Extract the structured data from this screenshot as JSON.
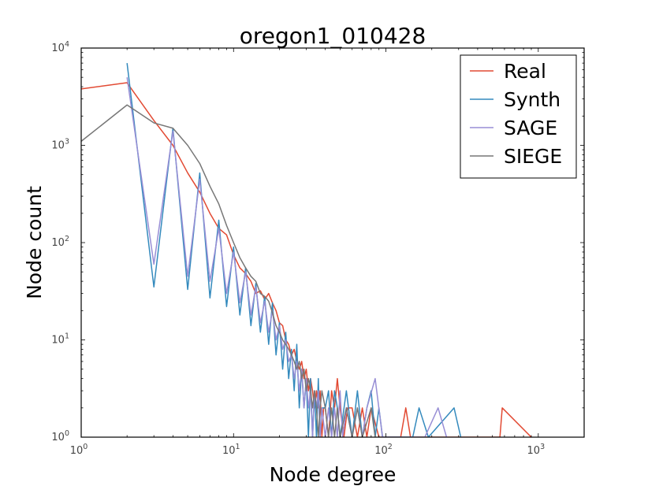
{
  "chart_data": {
    "type": "line",
    "title": "oregon1_010428",
    "xlabel": "Node degree",
    "ylabel": "Node count",
    "xscale": "log",
    "yscale": "log",
    "xlim": [
      1,
      2000
    ],
    "ylim": [
      1,
      10000
    ],
    "x_ticks": [
      {
        "value": 1,
        "base": "10",
        "exp": "0"
      },
      {
        "value": 10,
        "base": "10",
        "exp": "1"
      },
      {
        "value": 100,
        "base": "10",
        "exp": "2"
      },
      {
        "value": 1000,
        "base": "10",
        "exp": "3"
      }
    ],
    "y_ticks": [
      {
        "value": 1,
        "base": "10",
        "exp": "0"
      },
      {
        "value": 10,
        "base": "10",
        "exp": "1"
      },
      {
        "value": 100,
        "base": "10",
        "exp": "2"
      },
      {
        "value": 1000,
        "base": "10",
        "exp": "3"
      },
      {
        "value": 10000,
        "base": "10",
        "exp": "4"
      }
    ],
    "grid": false,
    "legend_position": "top-right",
    "series": [
      {
        "name": "Real",
        "color": "#e24a33",
        "points": [
          [
            1,
            3800
          ],
          [
            2,
            4400
          ],
          [
            3,
            1800
          ],
          [
            4,
            1000
          ],
          [
            5,
            520
          ],
          [
            6,
            330
          ],
          [
            7,
            200
          ],
          [
            8,
            140
          ],
          [
            9,
            120
          ],
          [
            10,
            75
          ],
          [
            11,
            55
          ],
          [
            12,
            48
          ],
          [
            13,
            40
          ],
          [
            14,
            30
          ],
          [
            15,
            32
          ],
          [
            16,
            26
          ],
          [
            17,
            30
          ],
          [
            18,
            24
          ],
          [
            19,
            20
          ],
          [
            20,
            15
          ],
          [
            21,
            14
          ],
          [
            22,
            10
          ],
          [
            23,
            9
          ],
          [
            24,
            7
          ],
          [
            25,
            8
          ],
          [
            26,
            6
          ],
          [
            27,
            5
          ],
          [
            28,
            6
          ],
          [
            29,
            4
          ],
          [
            30,
            5
          ],
          [
            31,
            3
          ],
          [
            32,
            4
          ],
          [
            33,
            3
          ],
          [
            34,
            2
          ],
          [
            35,
            3
          ],
          [
            36,
            2
          ],
          [
            37,
            3
          ],
          [
            38,
            1
          ],
          [
            39,
            2
          ],
          [
            40,
            2
          ],
          [
            42,
            1
          ],
          [
            44,
            3
          ],
          [
            46,
            2
          ],
          [
            48,
            4
          ],
          [
            50,
            2
          ],
          [
            53,
            1
          ],
          [
            56,
            2
          ],
          [
            60,
            2
          ],
          [
            65,
            1
          ],
          [
            70,
            2
          ],
          [
            75,
            1
          ],
          [
            80,
            2
          ],
          [
            90,
            1
          ],
          [
            100,
            1
          ],
          [
            110,
            1
          ],
          [
            125,
            1
          ],
          [
            135,
            2
          ],
          [
            145,
            1
          ],
          [
            560,
            1
          ],
          [
            580,
            2
          ],
          [
            900,
            1
          ]
        ]
      },
      {
        "name": "Synth",
        "color": "#348abd",
        "points": [
          [
            2,
            7000
          ],
          [
            3,
            35
          ],
          [
            4,
            1500
          ],
          [
            5,
            33
          ],
          [
            6,
            520
          ],
          [
            7,
            27
          ],
          [
            8,
            170
          ],
          [
            9,
            22
          ],
          [
            10,
            90
          ],
          [
            11,
            18
          ],
          [
            12,
            55
          ],
          [
            13,
            14
          ],
          [
            14,
            38
          ],
          [
            15,
            12
          ],
          [
            16,
            28
          ],
          [
            17,
            9
          ],
          [
            18,
            24
          ],
          [
            19,
            7
          ],
          [
            20,
            15
          ],
          [
            21,
            5
          ],
          [
            22,
            12
          ],
          [
            23,
            4
          ],
          [
            24,
            8
          ],
          [
            25,
            3
          ],
          [
            26,
            9
          ],
          [
            27,
            2
          ],
          [
            28,
            5
          ],
          [
            29,
            2
          ],
          [
            30,
            4
          ],
          [
            31,
            1
          ],
          [
            32,
            4
          ],
          [
            33,
            1
          ],
          [
            34,
            3
          ],
          [
            35,
            1
          ],
          [
            36,
            4
          ],
          [
            37,
            1
          ],
          [
            38,
            2
          ],
          [
            40,
            2
          ],
          [
            42,
            3
          ],
          [
            44,
            1
          ],
          [
            46,
            3
          ],
          [
            48,
            2
          ],
          [
            50,
            1
          ],
          [
            55,
            3
          ],
          [
            60,
            1
          ],
          [
            65,
            3
          ],
          [
            70,
            1
          ],
          [
            75,
            2
          ],
          [
            80,
            3
          ],
          [
            85,
            1
          ],
          [
            90,
            2
          ],
          [
            95,
            1
          ],
          [
            150,
            1
          ],
          [
            165,
            2
          ],
          [
            190,
            1
          ],
          [
            280,
            2
          ],
          [
            310,
            1
          ]
        ]
      },
      {
        "name": "SAGE",
        "color": "#988ed5",
        "points": [
          [
            2,
            5000
          ],
          [
            3,
            60
          ],
          [
            4,
            1400
          ],
          [
            5,
            45
          ],
          [
            6,
            450
          ],
          [
            7,
            40
          ],
          [
            8,
            140
          ],
          [
            9,
            30
          ],
          [
            10,
            80
          ],
          [
            11,
            24
          ],
          [
            12,
            50
          ],
          [
            13,
            18
          ],
          [
            14,
            35
          ],
          [
            15,
            15
          ],
          [
            16,
            25
          ],
          [
            17,
            12
          ],
          [
            18,
            20
          ],
          [
            19,
            10
          ],
          [
            20,
            14
          ],
          [
            21,
            8
          ],
          [
            22,
            10
          ],
          [
            23,
            6
          ],
          [
            24,
            7
          ],
          [
            25,
            4
          ],
          [
            26,
            6
          ],
          [
            27,
            3
          ],
          [
            28,
            5
          ],
          [
            29,
            2
          ],
          [
            30,
            4
          ],
          [
            31,
            2
          ],
          [
            32,
            3
          ],
          [
            33,
            1
          ],
          [
            34,
            3
          ],
          [
            35,
            2
          ],
          [
            36,
            3
          ],
          [
            37,
            1
          ],
          [
            38,
            2
          ],
          [
            40,
            1
          ],
          [
            42,
            2
          ],
          [
            44,
            1
          ],
          [
            46,
            2
          ],
          [
            48,
            1
          ],
          [
            50,
            3
          ],
          [
            52,
            1
          ],
          [
            55,
            2
          ],
          [
            60,
            1
          ],
          [
            65,
            2
          ],
          [
            70,
            1
          ],
          [
            75,
            2
          ],
          [
            85,
            4
          ],
          [
            95,
            1
          ],
          [
            180,
            1
          ],
          [
            220,
            2
          ],
          [
            250,
            1
          ]
        ]
      },
      {
        "name": "SIEGE",
        "color": "#777777",
        "points": [
          [
            1,
            1100
          ],
          [
            2,
            2600
          ],
          [
            3,
            1700
          ],
          [
            4,
            1500
          ],
          [
            5,
            1000
          ],
          [
            6,
            650
          ],
          [
            7,
            380
          ],
          [
            8,
            250
          ],
          [
            9,
            150
          ],
          [
            10,
            100
          ],
          [
            11,
            70
          ],
          [
            12,
            55
          ],
          [
            13,
            45
          ],
          [
            14,
            40
          ],
          [
            15,
            30
          ],
          [
            16,
            28
          ],
          [
            17,
            25
          ],
          [
            18,
            19
          ],
          [
            19,
            14
          ],
          [
            20,
            12
          ],
          [
            21,
            10
          ],
          [
            22,
            9
          ],
          [
            23,
            8
          ],
          [
            24,
            7
          ],
          [
            25,
            6
          ],
          [
            26,
            5
          ],
          [
            27,
            6
          ],
          [
            28,
            4
          ],
          [
            29,
            5
          ],
          [
            30,
            3
          ],
          [
            31,
            4
          ],
          [
            32,
            3
          ],
          [
            33,
            2
          ],
          [
            34,
            3
          ],
          [
            35,
            2
          ],
          [
            36,
            1
          ],
          [
            37,
            2
          ],
          [
            38,
            3
          ],
          [
            40,
            2
          ],
          [
            42,
            1
          ],
          [
            44,
            2
          ],
          [
            46,
            1
          ],
          [
            48,
            2
          ],
          [
            50,
            1
          ],
          [
            55,
            2
          ],
          [
            60,
            1
          ],
          [
            65,
            2
          ],
          [
            70,
            1
          ],
          [
            80,
            2
          ],
          [
            85,
            1
          ]
        ]
      }
    ]
  }
}
